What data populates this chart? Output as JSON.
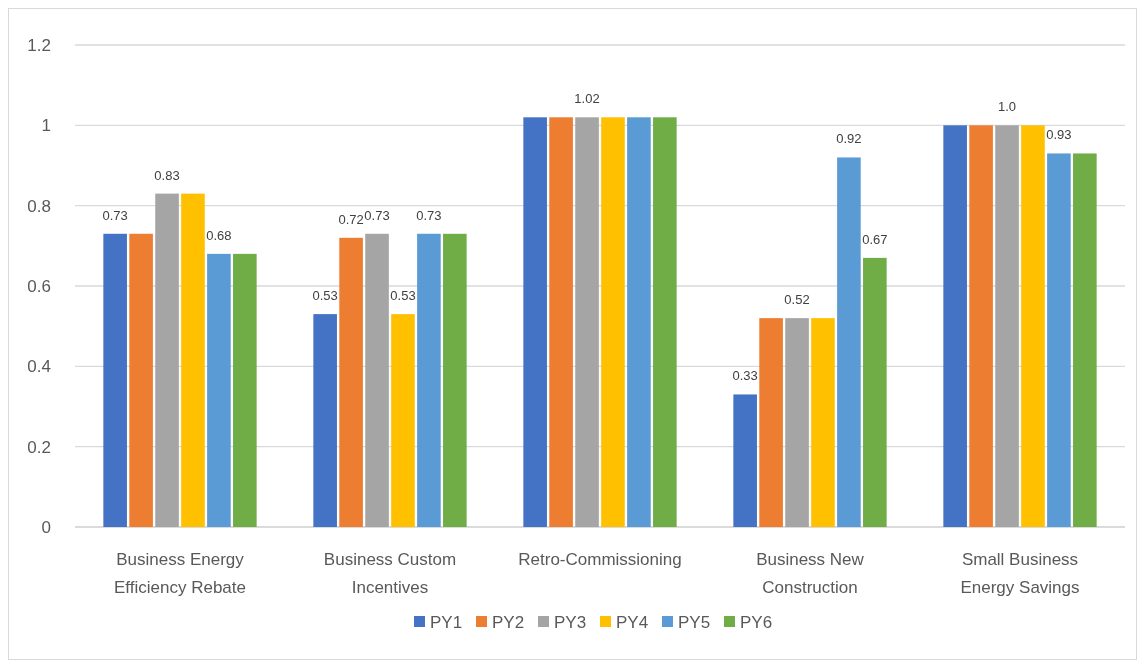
{
  "chart_data": {
    "type": "bar",
    "categories": [
      "Business Energy Efficiency Rebate",
      "Business Custom Incentives",
      "Retro-Commissioning",
      "Business New Construction",
      "Small Business Energy Savings"
    ],
    "series": [
      {
        "name": "PY1",
        "color": "#4472c4",
        "values": [
          0.73,
          0.53,
          1.02,
          0.33,
          1.0
        ],
        "value_labels": [
          "0.73",
          "0.53",
          null,
          "0.33",
          null
        ]
      },
      {
        "name": "PY2",
        "color": "#ed7d31",
        "values": [
          0.73,
          0.72,
          1.02,
          0.52,
          1.0
        ],
        "value_labels": [
          null,
          "0.72",
          null,
          null,
          null
        ]
      },
      {
        "name": "PY3",
        "color": "#a5a5a5",
        "values": [
          0.83,
          0.73,
          1.02,
          0.52,
          1.0
        ],
        "value_labels": [
          "0.83",
          "0.73",
          "1.02",
          "0.52",
          "1.0"
        ]
      },
      {
        "name": "PY4",
        "color": "#ffc000",
        "values": [
          0.83,
          0.53,
          1.02,
          0.52,
          1.0
        ],
        "value_labels": [
          null,
          "0.53",
          null,
          null,
          null
        ]
      },
      {
        "name": "PY5",
        "color": "#5b9bd5",
        "values": [
          0.68,
          0.73,
          1.02,
          0.92,
          0.93
        ],
        "value_labels": [
          "0.68",
          "0.73",
          null,
          "0.92",
          "0.93"
        ]
      },
      {
        "name": "PY6",
        "color": "#70ad47",
        "values": [
          0.68,
          0.73,
          1.02,
          0.67,
          0.93
        ],
        "value_labels": [
          null,
          null,
          null,
          "0.67",
          null
        ]
      }
    ],
    "ylim": [
      0,
      1.2
    ],
    "yticks": [
      0,
      0.2,
      0.4,
      0.6,
      0.8,
      1,
      1.2
    ],
    "grid": "y",
    "legend": "bottom"
  }
}
